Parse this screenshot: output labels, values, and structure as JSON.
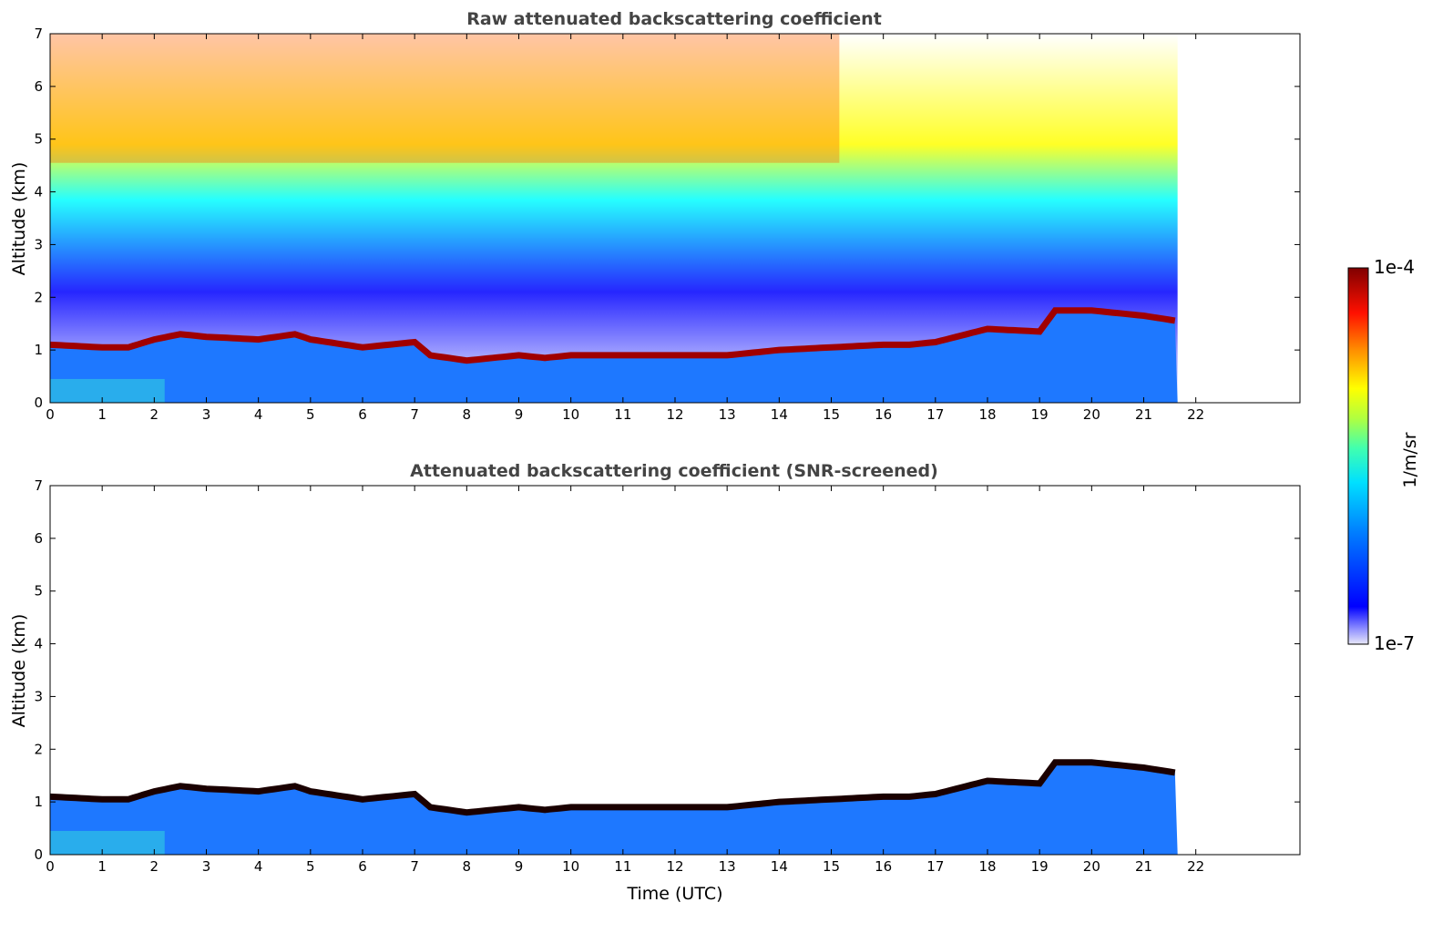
{
  "chart_data": [
    {
      "type": "heatmap",
      "title": "Raw attenuated backscattering coefficient",
      "xlabel": "",
      "ylabel": "Altitude (km)",
      "xlim": [
        0,
        24
      ],
      "ylim": [
        0,
        7
      ],
      "x_ticks": [
        0,
        1,
        2,
        3,
        4,
        5,
        6,
        7,
        8,
        9,
        10,
        11,
        12,
        13,
        14,
        15,
        16,
        17,
        18,
        19,
        20,
        21,
        22
      ],
      "y_ticks": [
        0,
        1,
        2,
        3,
        4,
        5,
        6,
        7
      ],
      "data_end_x": 21.65,
      "grid": false,
      "layer_top_km": [
        [
          0,
          1.1
        ],
        [
          1,
          1.05
        ],
        [
          1.5,
          1.05
        ],
        [
          2,
          1.2
        ],
        [
          2.5,
          1.3
        ],
        [
          3,
          1.25
        ],
        [
          4,
          1.2
        ],
        [
          4.7,
          1.3
        ],
        [
          5,
          1.2
        ],
        [
          6,
          1.05
        ],
        [
          6.5,
          1.1
        ],
        [
          7,
          1.15
        ],
        [
          7.3,
          0.9
        ],
        [
          8,
          0.8
        ],
        [
          8.5,
          0.85
        ],
        [
          9,
          0.9
        ],
        [
          9.5,
          0.85
        ],
        [
          10,
          0.9
        ],
        [
          11,
          0.9
        ],
        [
          12,
          0.9
        ],
        [
          13,
          0.9
        ],
        [
          14,
          1.0
        ],
        [
          15,
          1.05
        ],
        [
          16,
          1.1
        ],
        [
          16.5,
          1.1
        ],
        [
          17,
          1.15
        ],
        [
          18,
          1.4
        ],
        [
          19,
          1.35
        ],
        [
          19.3,
          1.75
        ],
        [
          20,
          1.75
        ],
        [
          21,
          1.65
        ],
        [
          21.65,
          1.55
        ]
      ]
    },
    {
      "type": "heatmap",
      "title": "Attenuated backscattering coefficient (SNR-screened)",
      "xlabel": "Time (UTC)",
      "ylabel": "Altitude (km)",
      "xlim": [
        0,
        24
      ],
      "ylim": [
        0,
        7
      ],
      "x_ticks": [
        0,
        1,
        2,
        3,
        4,
        5,
        6,
        7,
        8,
        9,
        10,
        11,
        12,
        13,
        14,
        15,
        16,
        17,
        18,
        19,
        20,
        21,
        22
      ],
      "y_ticks": [
        0,
        1,
        2,
        3,
        4,
        5,
        6,
        7
      ],
      "data_end_x": 21.65,
      "grid": false,
      "layer_top_km": [
        [
          0,
          1.1
        ],
        [
          1,
          1.05
        ],
        [
          1.5,
          1.05
        ],
        [
          2,
          1.2
        ],
        [
          2.5,
          1.3
        ],
        [
          3,
          1.25
        ],
        [
          4,
          1.2
        ],
        [
          4.7,
          1.3
        ],
        [
          5,
          1.2
        ],
        [
          6,
          1.05
        ],
        [
          6.5,
          1.1
        ],
        [
          7,
          1.15
        ],
        [
          7.3,
          0.9
        ],
        [
          8,
          0.8
        ],
        [
          8.5,
          0.85
        ],
        [
          9,
          0.9
        ],
        [
          9.5,
          0.85
        ],
        [
          10,
          0.9
        ],
        [
          11,
          0.9
        ],
        [
          12,
          0.9
        ],
        [
          13,
          0.9
        ],
        [
          14,
          1.0
        ],
        [
          15,
          1.05
        ],
        [
          16,
          1.1
        ],
        [
          16.5,
          1.1
        ],
        [
          17,
          1.15
        ],
        [
          18,
          1.4
        ],
        [
          19,
          1.35
        ],
        [
          19.3,
          1.75
        ],
        [
          20,
          1.75
        ],
        [
          21,
          1.65
        ],
        [
          21.65,
          1.55
        ]
      ]
    }
  ],
  "colorbar": {
    "max_label": "1e-4",
    "min_label": "1e-7",
    "unit_label": "1/m/sr",
    "colormap": "jet",
    "colors": [
      "#e8e8f8",
      "#0000ff",
      "#00a0ff",
      "#00ffff",
      "#80ff80",
      "#ffff00",
      "#ff8000",
      "#ff0000",
      "#800000"
    ]
  }
}
